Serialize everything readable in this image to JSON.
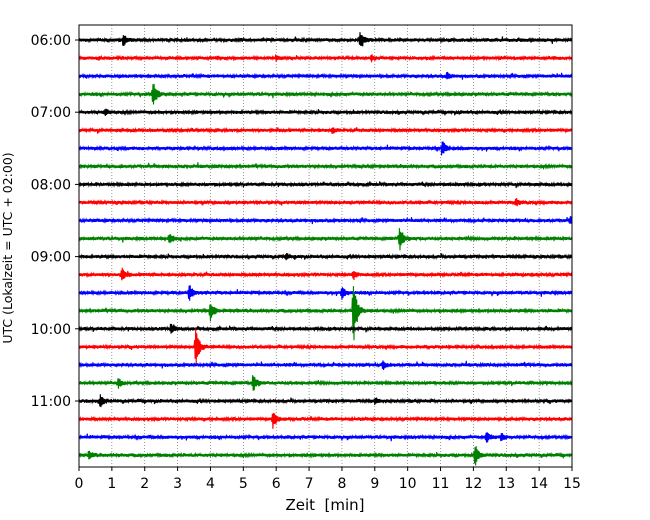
{
  "chart_data": {
    "type": "line",
    "title": "",
    "xlabel": "Zeit  [min]",
    "ylabel": "UTC (Lokalzeit = UTC + 02:00)",
    "xlim": [
      0,
      15
    ],
    "x_ticks": [
      0,
      1,
      2,
      3,
      4,
      5,
      6,
      7,
      8,
      9,
      10,
      11,
      12,
      13,
      14,
      15
    ],
    "x_tick_labels": [
      "0",
      "1",
      "2",
      "3",
      "4",
      "5",
      "6",
      "7",
      "8",
      "9",
      "10",
      "11",
      "12",
      "13",
      "14",
      "15"
    ],
    "y_tick_labels": [
      "06:00",
      "07:00",
      "08:00",
      "09:00",
      "10:00",
      "11:00"
    ],
    "y_tick_trace_index": [
      0,
      4,
      8,
      12,
      16,
      20
    ],
    "grid": "vertical dotted",
    "trace_interval_min": 15,
    "start_time": "06:00",
    "trace_color_cycle": [
      "#000000",
      "#ff0000",
      "#0000ff",
      "#008000"
    ],
    "traces": [
      {
        "start": "06:00",
        "color": "#000000",
        "events": [
          {
            "t": 1.35,
            "amp": 6
          },
          {
            "t": 8.55,
            "amp": 10
          }
        ]
      },
      {
        "start": "06:15",
        "color": "#ff0000",
        "events": [
          {
            "t": 6.0,
            "amp": 3
          },
          {
            "t": 8.9,
            "amp": 3
          }
        ]
      },
      {
        "start": "06:30",
        "color": "#0000ff",
        "events": [
          {
            "t": 11.2,
            "amp": 3
          }
        ]
      },
      {
        "start": "06:45",
        "color": "#008000",
        "events": [
          {
            "t": 2.25,
            "amp": 14
          }
        ]
      },
      {
        "start": "07:00",
        "color": "#000000",
        "events": [
          {
            "t": 0.8,
            "amp": 3
          }
        ]
      },
      {
        "start": "07:15",
        "color": "#ff0000",
        "events": [
          {
            "t": 7.7,
            "amp": 3
          }
        ]
      },
      {
        "start": "07:30",
        "color": "#0000ff",
        "events": [
          {
            "t": 11.05,
            "amp": 8
          }
        ]
      },
      {
        "start": "07:45",
        "color": "#008000",
        "events": []
      },
      {
        "start": "08:00",
        "color": "#000000",
        "events": []
      },
      {
        "start": "08:15",
        "color": "#ff0000",
        "events": [
          {
            "t": 13.3,
            "amp": 4
          }
        ]
      },
      {
        "start": "08:30",
        "color": "#0000ff",
        "events": [
          {
            "t": 14.95,
            "amp": 4
          }
        ]
      },
      {
        "start": "08:45",
        "color": "#008000",
        "events": [
          {
            "t": 2.75,
            "amp": 5
          },
          {
            "t": 9.75,
            "amp": 13
          }
        ]
      },
      {
        "start": "09:00",
        "color": "#000000",
        "events": [
          {
            "t": 6.3,
            "amp": 3
          }
        ]
      },
      {
        "start": "09:15",
        "color": "#ff0000",
        "events": [
          {
            "t": 1.3,
            "amp": 7
          },
          {
            "t": 8.35,
            "amp": 4
          }
        ]
      },
      {
        "start": "09:30",
        "color": "#0000ff",
        "events": [
          {
            "t": 3.35,
            "amp": 9
          },
          {
            "t": 8.0,
            "amp": 6
          }
        ]
      },
      {
        "start": "09:45",
        "color": "#008000",
        "events": [
          {
            "t": 4.0,
            "amp": 11
          },
          {
            "t": 8.35,
            "amp": 36
          }
        ]
      },
      {
        "start": "10:00",
        "color": "#000000",
        "events": [
          {
            "t": 2.8,
            "amp": 5
          }
        ]
      },
      {
        "start": "10:15",
        "color": "#ff0000",
        "events": [
          {
            "t": 3.55,
            "amp": 22
          }
        ]
      },
      {
        "start": "10:30",
        "color": "#0000ff",
        "events": [
          {
            "t": 9.25,
            "amp": 4
          }
        ]
      },
      {
        "start": "10:45",
        "color": "#008000",
        "events": [
          {
            "t": 1.2,
            "amp": 5
          },
          {
            "t": 5.3,
            "amp": 9
          }
        ]
      },
      {
        "start": "11:00",
        "color": "#000000",
        "events": [
          {
            "t": 0.65,
            "amp": 6
          },
          {
            "t": 9.0,
            "amp": 3
          }
        ]
      },
      {
        "start": "11:15",
        "color": "#ff0000",
        "events": [
          {
            "t": 5.9,
            "amp": 9
          }
        ]
      },
      {
        "start": "11:30",
        "color": "#0000ff",
        "events": [
          {
            "t": 12.4,
            "amp": 5
          },
          {
            "t": 12.85,
            "amp": 4
          }
        ]
      },
      {
        "start": "11:45",
        "color": "#008000",
        "events": [
          {
            "t": 0.3,
            "amp": 4
          },
          {
            "t": 12.05,
            "amp": 12
          }
        ]
      }
    ]
  }
}
